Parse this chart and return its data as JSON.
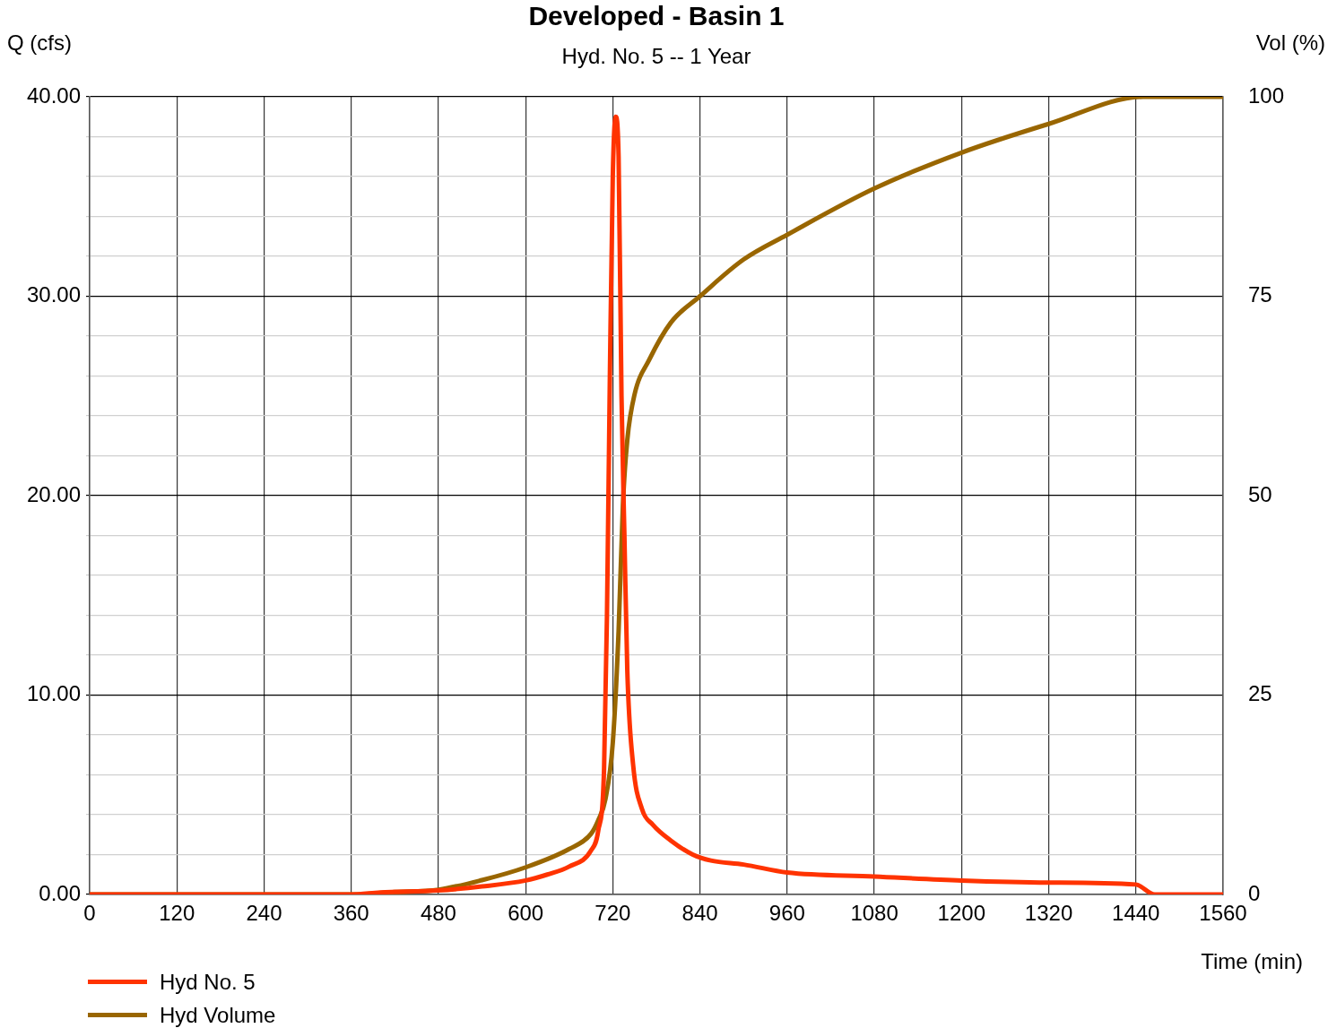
{
  "chart_data": {
    "type": "line",
    "title": "Developed - Basin 1",
    "subtitle": "Hyd. No. 5 -- 1 Year",
    "xlabel": "Time (min)",
    "ylabel": "Q (cfs)",
    "y2label": "Vol (%)",
    "xlim": [
      0,
      1560
    ],
    "xticks": [
      0,
      120,
      240,
      360,
      480,
      600,
      720,
      840,
      960,
      1080,
      1200,
      1320,
      1440,
      1560
    ],
    "ylim": [
      0,
      40
    ],
    "yticks": [
      {
        "value": 0,
        "label": "0.00"
      },
      {
        "value": 2,
        "label": null
      },
      {
        "value": 4,
        "label": null
      },
      {
        "value": 6,
        "label": null
      },
      {
        "value": 8,
        "label": null
      },
      {
        "value": 10,
        "label": "10.00"
      },
      {
        "value": 12,
        "label": null
      },
      {
        "value": 14,
        "label": null
      },
      {
        "value": 16,
        "label": null
      },
      {
        "value": 18,
        "label": null
      },
      {
        "value": 20,
        "label": "20.00"
      },
      {
        "value": 22,
        "label": null
      },
      {
        "value": 24,
        "label": null
      },
      {
        "value": 26,
        "label": null
      },
      {
        "value": 28,
        "label": null
      },
      {
        "value": 30,
        "label": "30.00"
      },
      {
        "value": 32,
        "label": null
      },
      {
        "value": 34,
        "label": null
      },
      {
        "value": 36,
        "label": null
      },
      {
        "value": 38,
        "label": null
      },
      {
        "value": 40,
        "label": "40.00"
      }
    ],
    "y2lim": [
      0,
      100
    ],
    "y2ticks": [
      0,
      25,
      50,
      75,
      100
    ],
    "grid": true,
    "legend": "bottom left",
    "marker": "none",
    "line_style": "solid",
    "series": [
      {
        "name": "Hyd No. 5",
        "color": "#ff3300",
        "x": [
          0,
          360,
          400,
          480,
          540,
          600,
          630,
          660,
          690,
          700,
          708,
          712,
          716,
          720,
          724,
          728,
          732,
          736,
          740,
          748,
          760,
          775,
          800,
          830,
          855,
          900,
          960,
          1080,
          1200,
          1320,
          1440,
          1466,
          1560
        ],
        "values": [
          0,
          0,
          0.1,
          0.2,
          0.4,
          0.7,
          1.0,
          1.4,
          2.2,
          3.2,
          6.3,
          14,
          26,
          36,
          39.0,
          37,
          25,
          18,
          11.2,
          6.5,
          4.3,
          3.5,
          2.7,
          2.0,
          1.7,
          1.5,
          1.1,
          0.9,
          0.7,
          0.6,
          0.5,
          0,
          0
        ]
      },
      {
        "name": "Hyd Volume",
        "color": "#996600",
        "axis": "y2",
        "x": [
          0,
          360,
          420,
          480,
          540,
          600,
          660,
          690,
          700,
          710,
          720,
          728,
          734,
          740,
          750,
          770,
          800,
          840,
          900,
          960,
          1080,
          1200,
          1320,
          1450,
          1560
        ],
        "values": [
          0,
          0,
          0.3,
          0.6,
          1.8,
          3.4,
          5.7,
          7.6,
          9.3,
          12,
          19,
          33,
          49,
          57,
          62.7,
          67,
          71.7,
          75,
          79.6,
          82.7,
          88.5,
          93,
          96.6,
          100,
          100
        ]
      }
    ]
  }
}
